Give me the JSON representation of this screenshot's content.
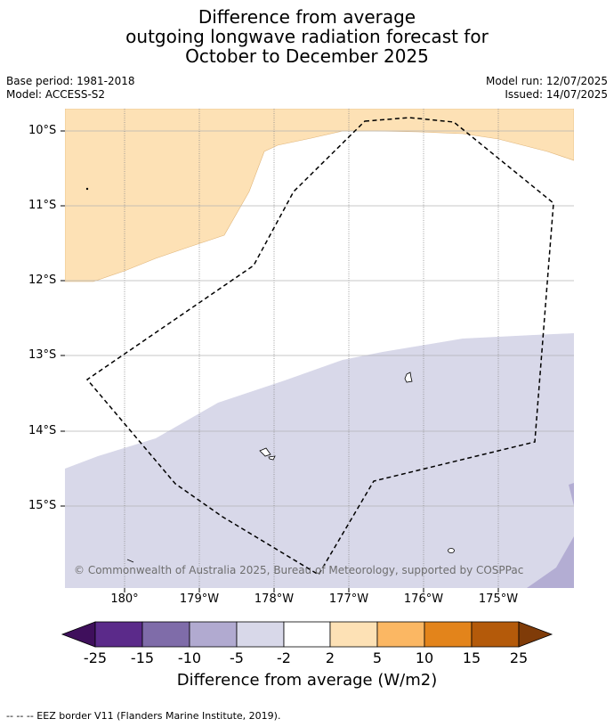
{
  "title": {
    "line1": "Difference from average",
    "line2": "outgoing longwave radiation forecast for",
    "line3": "October to December 2025"
  },
  "meta": {
    "base_period": "Base period: 1981-2018",
    "model": "Model: ACCESS-S2",
    "model_run": "Model run: 12/07/2025",
    "issued": "Issued: 14/07/2025"
  },
  "map": {
    "lon_range": [
      -180.8,
      -174.0
    ],
    "lat_range": [
      -16.1,
      -9.7
    ],
    "lat_labels": [
      "10°S",
      "11°S",
      "12°S",
      "13°S",
      "14°S",
      "15°S"
    ],
    "lon_labels": [
      "180°",
      "179°W",
      "178°W",
      "177°W",
      "176°W",
      "175°W"
    ],
    "credit": "© Commonwealth of Australia 2025, Bureau of Meteorology, supported by COSPPac",
    "colors": {
      "light_orange": "#fde1b5",
      "lavender": "#d8d8e9",
      "purple_light": "#b3add3"
    }
  },
  "colorbar": {
    "ticks": [
      "-25",
      "-15",
      "-10",
      "-5",
      "-2",
      "2",
      "5",
      "10",
      "15",
      "25"
    ],
    "colors": [
      "#3f0f5c",
      "#5b2a8a",
      "#7f6ca9",
      "#b1aad0",
      "#d8d8e9",
      "#ffffff",
      "#fde1b5",
      "#fbb763",
      "#e3841b",
      "#b45a0a",
      "#7f3b08"
    ],
    "label": "Difference from average (W/m2)"
  },
  "legend_note": "-- -- -- EEZ border V11 (Flanders Marine Institute, 2019)."
}
